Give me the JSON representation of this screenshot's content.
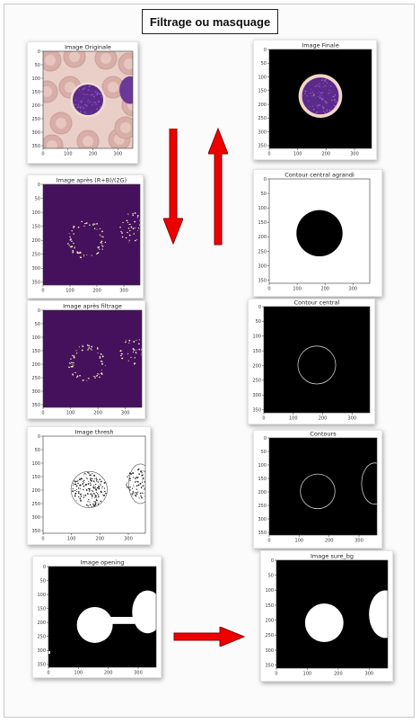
{
  "title": "Filtrage ou masquage",
  "colors": {
    "arrow": "#ee0000",
    "arrow_edge": "#8a0000",
    "purple_bg": "#46115c",
    "frame": "#c8c8c8"
  },
  "panels": [
    {
      "id": "image-originale",
      "label": "Image Originale",
      "style": "original",
      "yticks": [
        "0",
        "50",
        "100",
        "150",
        "200",
        "250",
        "300",
        "350"
      ],
      "xticks": [
        "0",
        "100",
        "200",
        "300"
      ]
    },
    {
      "id": "image-apres-rbg",
      "label": "Image après (R+B)/(2G)",
      "style": "purple",
      "yticks": [
        "0",
        "50",
        "100",
        "150",
        "200",
        "250",
        "300",
        "350"
      ],
      "xticks": [
        "0",
        "100",
        "200",
        "300"
      ]
    },
    {
      "id": "image-apres-filtrage",
      "label": "Image après filtrage",
      "style": "purple",
      "yticks": [
        "0",
        "50",
        "100",
        "150",
        "200",
        "250",
        "300",
        "350"
      ],
      "xticks": [
        "0",
        "100",
        "200",
        "300"
      ]
    },
    {
      "id": "image-thresh",
      "label": "Image thresh",
      "style": "thresh",
      "yticks": [
        "0",
        "50",
        "100",
        "150",
        "200",
        "250",
        "300",
        "350"
      ],
      "xticks": [
        "0",
        "100",
        "200",
        "300"
      ]
    },
    {
      "id": "image-opening",
      "label": "Image opening",
      "style": "opening",
      "yticks": [
        "0",
        "50",
        "100",
        "150",
        "200",
        "250",
        "300",
        "350"
      ],
      "xticks": [
        "0",
        "100",
        "200",
        "300"
      ]
    },
    {
      "id": "image-finale",
      "label": "Image Finale",
      "style": "finale",
      "yticks": [
        "0",
        "50",
        "100",
        "150",
        "200",
        "250",
        "300",
        "350"
      ],
      "xticks": [
        "0",
        "100",
        "200",
        "300"
      ]
    },
    {
      "id": "contour-central-agrandi",
      "label": "Contour central agrandi",
      "style": "enlarged",
      "yticks": [
        "0",
        "50",
        "100",
        "150",
        "200",
        "250",
        "300",
        "350"
      ],
      "xticks": [
        "0",
        "100",
        "200",
        "300"
      ]
    },
    {
      "id": "contour-central",
      "label": "Contour central",
      "style": "contour_central",
      "yticks": [
        "0",
        "50",
        "100",
        "150",
        "200",
        "250",
        "300",
        "350"
      ],
      "xticks": [
        "0",
        "100",
        "200",
        "300"
      ]
    },
    {
      "id": "contours",
      "label": "Contours",
      "style": "contours",
      "yticks": [
        "0",
        "50",
        "100",
        "150",
        "200",
        "250",
        "300",
        "350"
      ],
      "xticks": [
        "0",
        "100",
        "200",
        "300"
      ]
    },
    {
      "id": "image-sure-bg",
      "label": "Image sure_bg",
      "style": "sure_bg",
      "yticks": [
        "0",
        "50",
        "100",
        "150",
        "200",
        "250",
        "300",
        "350"
      ],
      "xticks": [
        "0",
        "100",
        "200",
        "300"
      ]
    }
  ]
}
